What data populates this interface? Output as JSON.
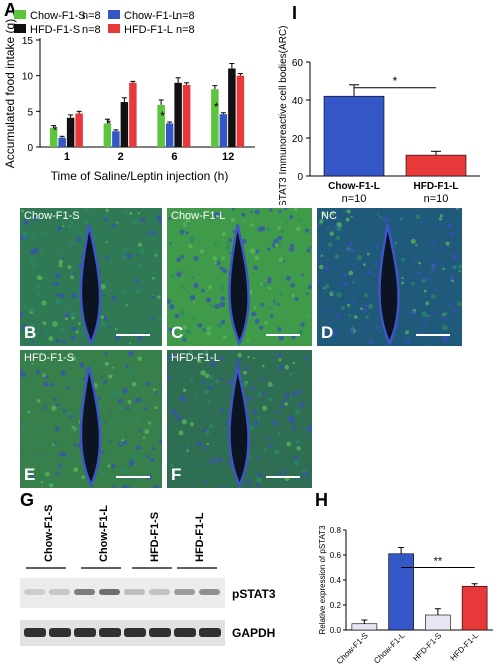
{
  "panels": {
    "a": {
      "letter": "A"
    },
    "i": {
      "letter": "I"
    },
    "g": {
      "letter": "G"
    },
    "h": {
      "letter": "H"
    }
  },
  "micrographs": [
    {
      "label": "Chow-F1-S",
      "letter": "B",
      "tint": "#2f7a55"
    },
    {
      "label": "Chow-F1-L",
      "letter": "C",
      "tint": "#3f9a4a"
    },
    {
      "label": "NC",
      "letter": "D",
      "tint": "#1f5a7a"
    },
    {
      "label": "HFD-F1-S",
      "letter": "E",
      "tint": "#37804c"
    },
    {
      "label": "HFD-F1-L",
      "letter": "F",
      "tint": "#2e6e52"
    }
  ],
  "western": {
    "lanes": [
      "Chow-F1-S",
      "Chow-F1-L",
      "HFD-F1-S",
      "HFD-F1-L"
    ],
    "bands": [
      "pSTAT3",
      "GAPDH"
    ]
  },
  "chart_data": [
    {
      "type": "bar",
      "panel": "A",
      "ylabel": "Accumulated food intake (g)",
      "xlabel": "Time of Saline/Leptin injection (h)",
      "categories": [
        "1",
        "2",
        "6",
        "12"
      ],
      "ylim": [
        0,
        15
      ],
      "yticks": [
        0,
        5,
        10,
        15
      ],
      "legend": [
        {
          "name": "Chow-F1-S",
          "n": "n=8",
          "color": "#5cc43d"
        },
        {
          "name": "Chow-F1-L",
          "n": "n=8",
          "color": "#3556c6"
        },
        {
          "name": "HFD-F1-S",
          "n": "n=8",
          "color": "#111111"
        },
        {
          "name": "HFD-F1-L",
          "n": "n=8",
          "color": "#e8393a"
        }
      ],
      "series": [
        {
          "name": "Chow-F1-S",
          "color": "#5cc43d",
          "values": [
            2.7,
            3.3,
            5.9,
            8.1
          ],
          "errors": [
            0.3,
            0.6,
            0.7,
            0.5
          ]
        },
        {
          "name": "Chow-F1-L",
          "color": "#3556c6",
          "values": [
            1.3,
            2.2,
            3.3,
            4.6
          ],
          "errors": [
            0.2,
            0.2,
            0.2,
            0.2
          ]
        },
        {
          "name": "HFD-F1-S",
          "color": "#111111",
          "values": [
            4.1,
            6.3,
            9.0,
            11.0
          ],
          "errors": [
            0.4,
            0.6,
            0.7,
            0.7
          ]
        },
        {
          "name": "HFD-F1-L",
          "color": "#e8393a",
          "values": [
            4.7,
            9.0,
            8.7,
            10.0
          ],
          "errors": [
            0.3,
            0.2,
            0.3,
            0.3
          ]
        }
      ],
      "significance": [
        {
          "category": "1",
          "label": "*"
        },
        {
          "category": "2",
          "label": "*"
        },
        {
          "category": "6",
          "label": "*"
        },
        {
          "category": "12",
          "label": "*"
        }
      ]
    },
    {
      "type": "bar",
      "panel": "I",
      "ylabel": "pSTAT3 Immunoreactive cell bodies(ARC)",
      "categories": [
        "Chow-F1-L",
        "HFD-F1-L"
      ],
      "sublabels": [
        "n=10",
        "n=10"
      ],
      "values": [
        42,
        11
      ],
      "errors": [
        6,
        2
      ],
      "colors": [
        "#3556c6",
        "#e8393a"
      ],
      "ylim": [
        0,
        60
      ],
      "yticks": [
        0,
        20,
        40,
        60
      ],
      "significance": "*"
    },
    {
      "type": "bar",
      "panel": "H",
      "ylabel": "Relative expression of pSTAT3",
      "categories": [
        "Chow-F1-S",
        "Chow-F1-L",
        "HFD-F1-S",
        "HFD-F1-L"
      ],
      "values": [
        0.05,
        0.61,
        0.12,
        0.35
      ],
      "errors": [
        0.03,
        0.05,
        0.05,
        0.02
      ],
      "colors": [
        "#e6e6f3",
        "#3556c6",
        "#e6e6f3",
        "#e8393a"
      ],
      "ylim": [
        0,
        0.8
      ],
      "yticks": [
        "0.0",
        "0.2",
        "0.4",
        "0.6",
        "0.8"
      ],
      "significance": "**"
    }
  ]
}
